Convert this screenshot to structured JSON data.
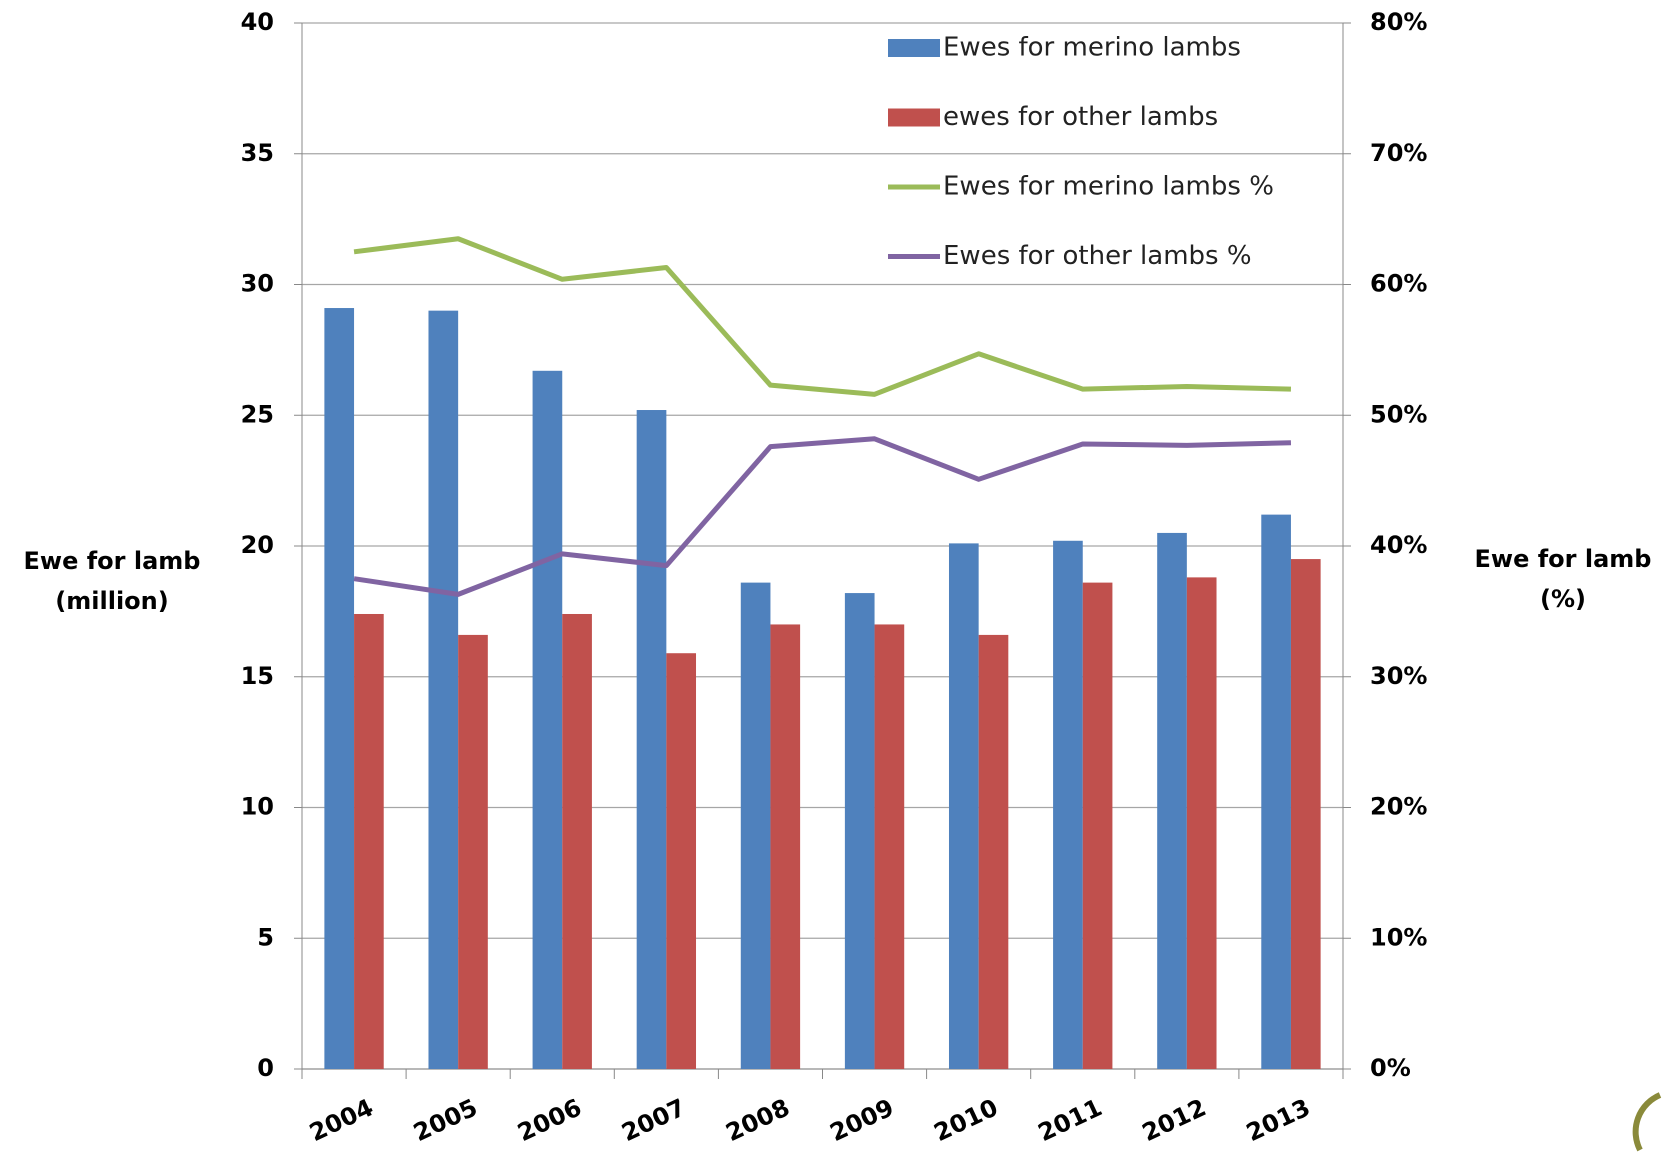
{
  "chart_data": {
    "type": "bar-line",
    "categories": [
      "2004",
      "2005",
      "2006",
      "2007",
      "2008",
      "2009",
      "2010",
      "2011",
      "2012",
      "2013"
    ],
    "series": [
      {
        "name": "Ewes for merino lambs",
        "type": "bar",
        "color": "#4f81bd",
        "values": [
          29.1,
          29.0,
          26.7,
          25.2,
          18.6,
          18.2,
          20.1,
          20.2,
          20.5,
          21.2
        ]
      },
      {
        "name": "ewes for other lambs",
        "type": "bar",
        "color": "#c0504d",
        "values": [
          17.4,
          16.6,
          17.4,
          15.9,
          17.0,
          17.0,
          16.6,
          18.6,
          18.8,
          19.5
        ]
      },
      {
        "name": "Ewes for merino lambs %",
        "type": "line",
        "axis": "y2",
        "color": "#9bbb59",
        "values": [
          62.5,
          63.5,
          60.4,
          61.3,
          52.3,
          51.6,
          54.7,
          52.0,
          52.2,
          52.0
        ]
      },
      {
        "name": "Ewes for other lambs %",
        "type": "line",
        "axis": "y2",
        "color": "#8064a2",
        "values": [
          37.5,
          36.3,
          39.4,
          38.5,
          47.6,
          48.2,
          45.1,
          47.8,
          47.7,
          47.9
        ]
      }
    ],
    "ylabel": [
      "Ewe for lamb",
      "(million)"
    ],
    "y2label": [
      "Ewe for lamb",
      "(%)"
    ],
    "ylim": [
      0,
      40
    ],
    "yticks": [
      0,
      5,
      10,
      15,
      20,
      25,
      30,
      35,
      40
    ],
    "y2lim": [
      0,
      80
    ],
    "y2ticks": [
      {
        "value": 0,
        "label": "0%"
      },
      {
        "value": 10,
        "label": "10%"
      },
      {
        "value": 20,
        "label": "20%"
      },
      {
        "value": 30,
        "label": "30%"
      },
      {
        "value": 40,
        "label": "40%"
      },
      {
        "value": 50,
        "label": "50%"
      },
      {
        "value": 60,
        "label": "60%"
      },
      {
        "value": 70,
        "label": "70%"
      },
      {
        "value": 80,
        "label": "80%"
      }
    ],
    "grid": true,
    "legend": "top-right"
  }
}
